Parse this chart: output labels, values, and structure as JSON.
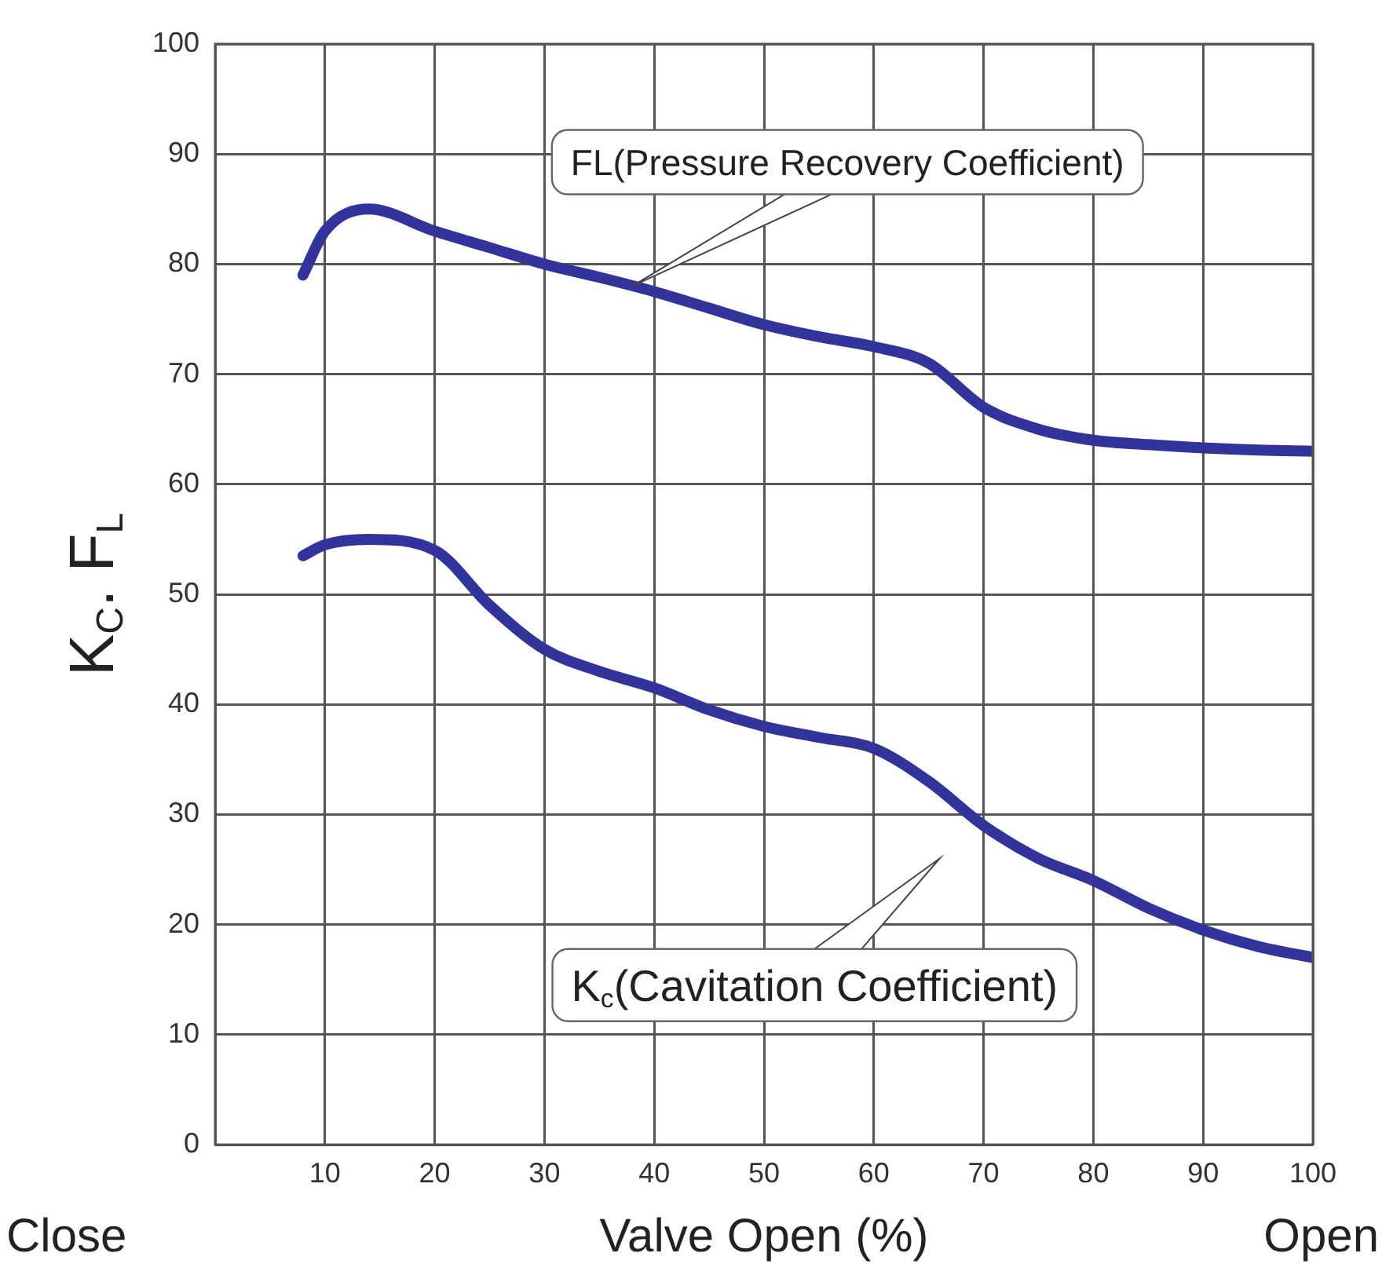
{
  "chart_data": {
    "type": "line",
    "xlabel": "Valve Open (%)",
    "ylabel": "K$_{C}$. F$_{L}$",
    "xlim": [
      0,
      100
    ],
    "xticks": [
      {
        "value": 0,
        "label": null
      },
      10,
      20,
      30,
      40,
      50,
      60,
      70,
      80,
      90,
      100
    ],
    "ylim": [
      0,
      100
    ],
    "yticks": [
      0,
      10,
      20,
      30,
      40,
      50,
      60,
      70,
      80,
      90,
      100
    ],
    "grid": true,
    "legend": false,
    "marker": "none",
    "line_style": "solid",
    "series": [
      {
        "color": "#33339c",
        "x": [
          8,
          10,
          14,
          20,
          25,
          30,
          35,
          40,
          45,
          50,
          55,
          60,
          65,
          70,
          75,
          80,
          85,
          90,
          95,
          100
        ],
        "values": [
          79,
          83,
          85,
          83,
          81.5,
          80,
          78.8,
          77.5,
          76,
          74.5,
          73.4,
          72.5,
          71,
          67,
          65,
          64,
          63.6,
          63.3,
          63.1,
          63
        ]
      },
      {
        "color": "#33339c",
        "x": [
          8,
          10,
          14,
          20,
          25,
          30,
          35,
          40,
          45,
          50,
          55,
          60,
          65,
          70,
          75,
          80,
          85,
          90,
          95,
          100
        ],
        "values": [
          53.5,
          54.5,
          55,
          54,
          49,
          45,
          43,
          41.5,
          39.5,
          38,
          37,
          36,
          33,
          29,
          26,
          24,
          21.5,
          19.5,
          18,
          17
        ]
      }
    ],
    "annotations": [
      {
        "text": "FL(Pressure Recovery Coefficient)",
        "x": 38,
        "y": 78
      },
      "K$_{c}$(Cavitation Coefficient)",
      "Close",
      "Open"
    ]
  }
}
